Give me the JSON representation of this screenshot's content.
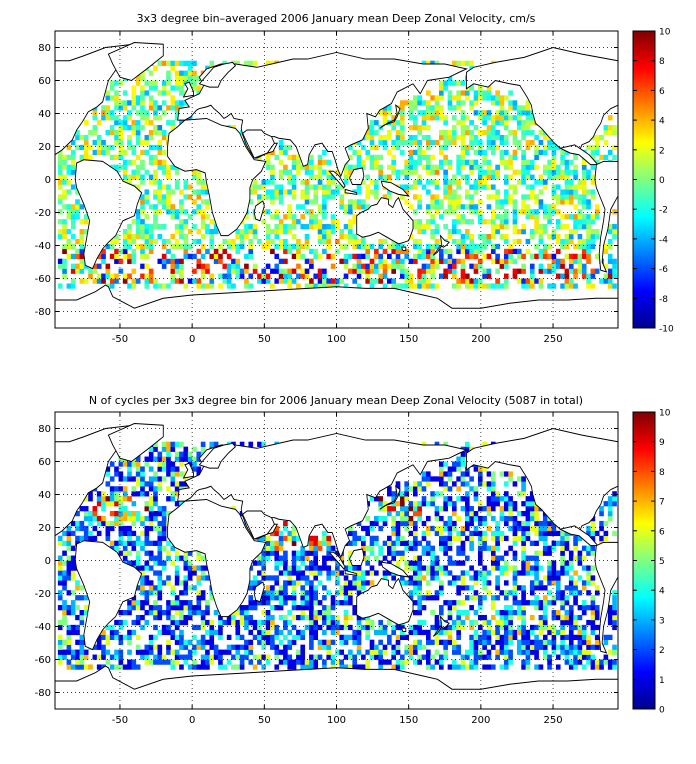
{
  "chart_data": [
    {
      "type": "heatmap",
      "title": "3x3 degree bin–averaged 2006 January mean Deep Zonal Velocity, cm/s",
      "xlabel": "",
      "ylabel": "",
      "xlim": [
        -95,
        295
      ],
      "ylim": [
        -90,
        90
      ],
      "x_ticks": [
        -50,
        0,
        50,
        100,
        150,
        200,
        250
      ],
      "y_ticks": [
        80,
        60,
        40,
        20,
        0,
        -20,
        -40,
        -60,
        -80
      ],
      "grid": true,
      "grid_style": "dotted",
      "bin_size_deg": 3,
      "colormap": "jet",
      "colorbar": {
        "min": -10,
        "max": 10,
        "ticks": [
          10,
          8,
          6,
          4,
          2,
          0,
          -2,
          -4,
          -6,
          -8,
          -10
        ]
      },
      "value_range": [
        -10,
        10
      ],
      "data_note": "sparse 3x3 degree cells over ocean; values mostly -4..4 with strong positive/negative cells near 45-60S"
    },
    {
      "type": "heatmap",
      "title": "N of cycles per 3x3 degree bin for 2006 January mean Deep Zonal Velocity (5087 in total)",
      "xlabel": "",
      "ylabel": "",
      "xlim": [
        -95,
        295
      ],
      "ylim": [
        -90,
        90
      ],
      "x_ticks": [
        -50,
        0,
        50,
        100,
        150,
        200,
        250
      ],
      "y_ticks": [
        80,
        60,
        40,
        20,
        0,
        -20,
        -40,
        -60,
        -80
      ],
      "grid": true,
      "grid_style": "dotted",
      "bin_size_deg": 3,
      "colormap": "jet",
      "colorbar": {
        "min": 0,
        "max": 10,
        "ticks": [
          10,
          9,
          8,
          7,
          6,
          5,
          4,
          3,
          2,
          1,
          0
        ]
      },
      "value_range": [
        0,
        10
      ],
      "total_cycles": 5087,
      "data_note": "counts mostly 1-4 per bin, higher counts in Arabian Sea, Bay of Bengal, Kuroshio"
    }
  ]
}
